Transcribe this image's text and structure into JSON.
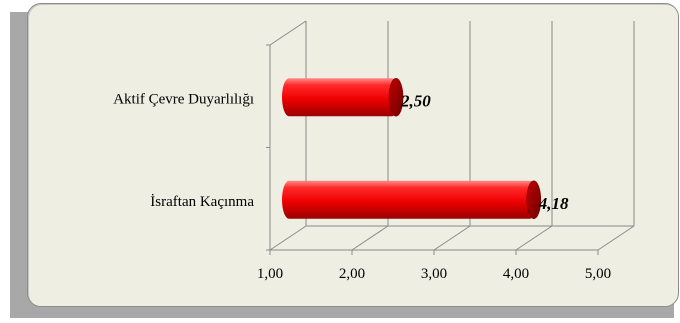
{
  "chart_data": {
    "type": "bar",
    "orientation": "horizontal",
    "style": "3d-cylinder",
    "categories": [
      "Aktif Çevre Duyarlılığı",
      "İsraftan Kaçınma"
    ],
    "values": [
      2.5,
      4.18
    ],
    "value_labels": [
      "2,50",
      "4,18"
    ],
    "xlim": [
      1,
      5
    ],
    "xticks": [
      1,
      2,
      3,
      4,
      5
    ],
    "xtick_labels": [
      "1,00",
      "2,00",
      "3,00",
      "4,00",
      "5,00"
    ],
    "title": "",
    "xlabel": "",
    "ylabel": "",
    "grid": "vertical",
    "legend": "none",
    "bar_color": "#ff0000",
    "bar_end_color": "#a00000"
  }
}
